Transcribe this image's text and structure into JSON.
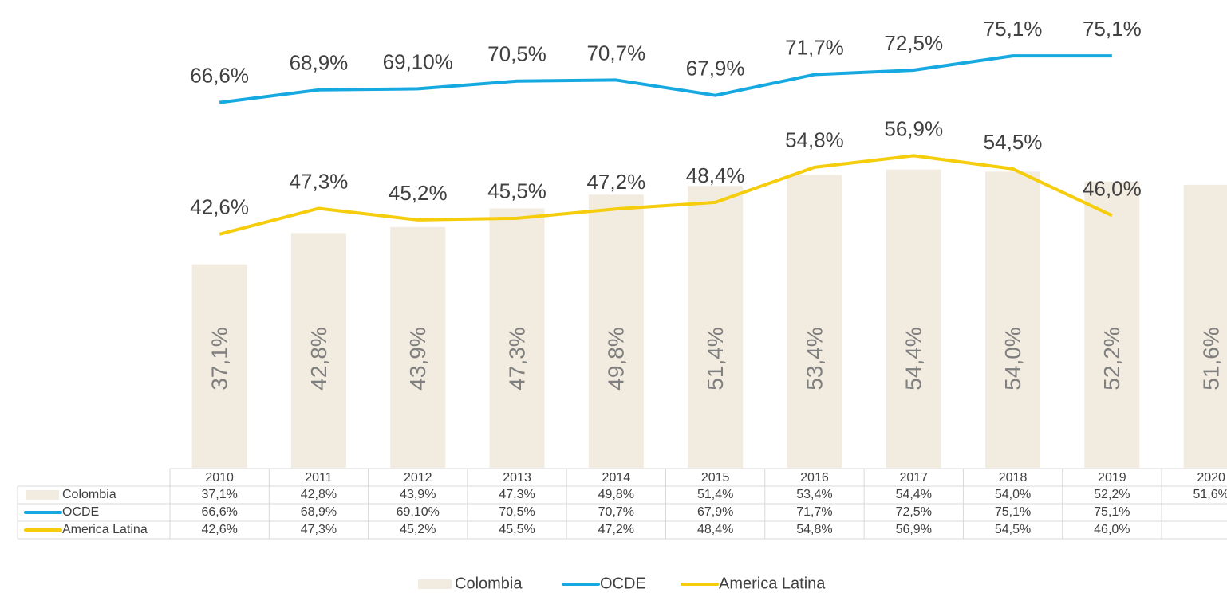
{
  "chart_data": {
    "type": "bar_line_table",
    "categories": [
      "2010",
      "2011",
      "2012",
      "2013",
      "2014",
      "2015",
      "2016",
      "2017",
      "2018",
      "2019",
      "2020"
    ],
    "ylim": [
      0,
      85
    ],
    "series": [
      {
        "name": "Colombia",
        "type": "bar",
        "color": "#f2ebe0",
        "values": [
          37.1,
          42.8,
          43.9,
          47.3,
          49.8,
          51.4,
          53.4,
          54.4,
          54.0,
          52.2,
          51.6
        ],
        "value_labels": [
          "37,1%",
          "42,8%",
          "43,9%",
          "47,3%",
          "49,8%",
          "51,4%",
          "53,4%",
          "54,4%",
          "54,0%",
          "52,2%",
          "51,6%"
        ]
      },
      {
        "name": "OCDE",
        "type": "line",
        "color": "#16a9e1",
        "values": [
          66.6,
          68.9,
          69.1,
          70.5,
          70.7,
          67.9,
          71.7,
          72.5,
          75.1,
          75.1,
          null
        ],
        "value_labels": [
          "66,6%",
          "68,9%",
          "69,10%",
          "70,5%",
          "70,7%",
          "67,9%",
          "71,7%",
          "72,5%",
          "75,1%",
          "75,1%",
          null
        ]
      },
      {
        "name": "America Latina",
        "type": "line",
        "color": "#f5cd0c",
        "values": [
          42.6,
          47.3,
          45.2,
          45.5,
          47.2,
          48.4,
          54.8,
          56.9,
          54.5,
          46.0,
          null
        ],
        "value_labels": [
          "42,6%",
          "47,3%",
          "45,2%",
          "45,5%",
          "47,2%",
          "48,4%",
          "54,8%",
          "56,9%",
          "54,5%",
          "46,0%",
          null
        ]
      }
    ],
    "data_table": true,
    "legend": "bottom"
  }
}
